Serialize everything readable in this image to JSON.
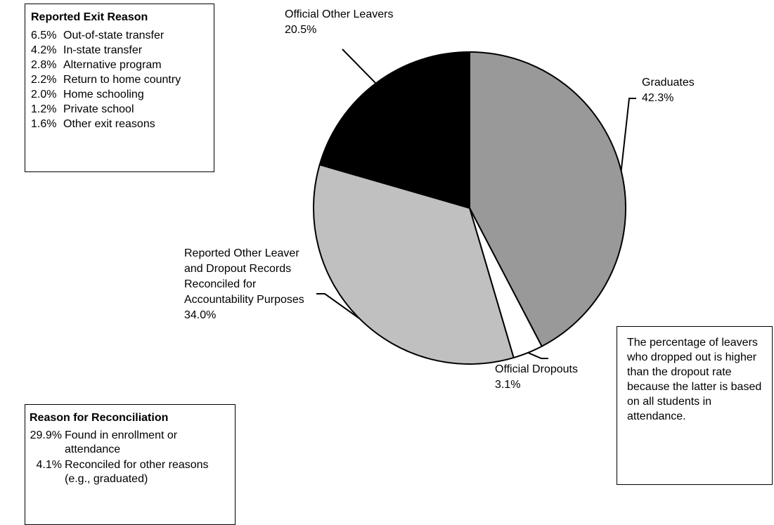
{
  "chart_data": {
    "type": "pie",
    "slices": [
      {
        "label_lines": [
          "Graduates"
        ],
        "value": 42.3,
        "value_label": "42.3%",
        "color": "#999999"
      },
      {
        "label_lines": [
          "Official Dropouts"
        ],
        "value": 3.1,
        "value_label": "3.1%",
        "color": "#ffffff"
      },
      {
        "label_lines": [
          "Reported Other Leaver",
          "and Dropout Records",
          "Reconciled for",
          "Accountability Purposes"
        ],
        "value": 34.0,
        "value_label": "34.0%",
        "color": "#c0c0c0"
      },
      {
        "label_lines": [
          "Official Other Leavers"
        ],
        "value": 20.5,
        "value_label": "20.5%",
        "color": "#000000"
      }
    ],
    "legend": "none",
    "grid": false
  },
  "exit_reasons": {
    "title": "Reported Exit Reason",
    "items": [
      {
        "pct": "6.5%",
        "label": "Out-of-state transfer"
      },
      {
        "pct": "4.2%",
        "label": "In-state transfer"
      },
      {
        "pct": "2.8%",
        "label": "Alternative program"
      },
      {
        "pct": "2.2%",
        "label": "Return to home country"
      },
      {
        "pct": "2.0%",
        "label": "Home schooling"
      },
      {
        "pct": "1.2%",
        "label": "Private school"
      },
      {
        "pct": "1.6%",
        "label": "Other exit reasons"
      }
    ]
  },
  "reconciliation": {
    "title": "Reason for Reconciliation",
    "items": [
      {
        "pct": "29.9%",
        "label": "Found in enrollment or attendance"
      },
      {
        "pct": "4.1%",
        "label": "Reconciled for other reasons (e.g., graduated)"
      }
    ]
  },
  "note": {
    "text": "The percentage of leavers who dropped out is higher than the dropout rate because the latter is based on all students in attendance."
  }
}
